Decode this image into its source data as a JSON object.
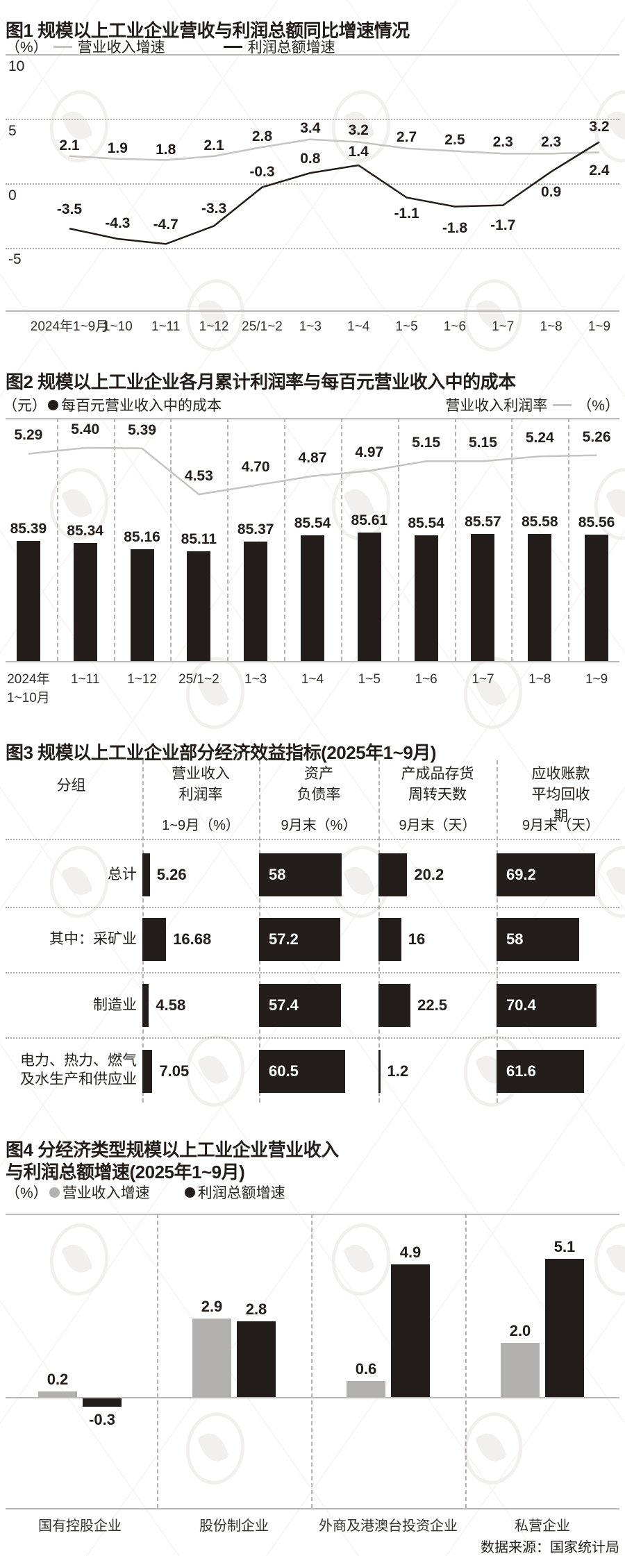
{
  "chart_data": [
    {
      "id": "figure1",
      "type": "line",
      "title": "图1 规模以上工业企业营收与利润总额同比增速情况",
      "unit": "（%）",
      "x": [
        "2024年1~9月",
        "1~10",
        "1~11",
        "1~12",
        "25/1~2",
        "1~3",
        "1~4",
        "1~5",
        "1~6",
        "1~7",
        "1~8",
        "1~9"
      ],
      "yticks": [
        "10",
        "5",
        "0",
        "-5"
      ],
      "ylim": [
        -9.9,
        10
      ],
      "grid": "horizontal-dotted",
      "legend_position": "top",
      "series": [
        {
          "name": "营业收入增速",
          "color": "#c6c4c2",
          "values": [
            2.1,
            1.9,
            1.8,
            2.1,
            2.8,
            3.4,
            3.2,
            2.7,
            2.5,
            2.3,
            2.3,
            2.4
          ],
          "labels": [
            "2.1",
            "1.9",
            "1.8",
            "2.1",
            "2.8",
            "3.4",
            "3.2",
            "2.7",
            "2.5",
            "2.3",
            "2.3",
            "2.4"
          ]
        },
        {
          "name": "利润总额增速",
          "color": "#221c1a",
          "values": [
            -3.5,
            -4.3,
            -4.7,
            -3.3,
            -0.3,
            0.8,
            1.4,
            -1.1,
            -1.8,
            -1.7,
            0.9,
            3.2
          ],
          "labels": [
            "-3.5",
            "-4.3",
            "-4.7",
            "-3.3",
            "-0.3",
            "0.8",
            "1.4",
            "-1.1",
            "-1.8",
            "-1.7",
            "0.9",
            "3.2"
          ]
        }
      ]
    },
    {
      "id": "figure2",
      "type": "bar+line",
      "title": "图2 规模以上工业企业各月累计利润率与每百元营业收入中的成本",
      "bar_unit": "（元）",
      "line_unit": "（%）",
      "x": [
        "2024年\n1~10月",
        "1~11",
        "1~12",
        "25/1~2",
        "1~3",
        "1~4",
        "1~5",
        "1~6",
        "1~7",
        "1~8",
        "1~9"
      ],
      "bar_series": {
        "name": "每百元营业收入中的成本",
        "color": "#231d1b",
        "values": [
          85.39,
          85.34,
          85.16,
          85.11,
          85.37,
          85.54,
          85.61,
          85.54,
          85.57,
          85.58,
          85.56
        ],
        "labels": [
          "85.39",
          "85.34",
          "85.16",
          "85.11",
          "85.37",
          "85.54",
          "85.61",
          "85.54",
          "85.57",
          "85.58",
          "85.56"
        ]
      },
      "line_series": {
        "name": "营业收入利润率",
        "color": "#c6c4c2",
        "values": [
          5.29,
          5.4,
          5.39,
          4.53,
          4.7,
          4.87,
          4.97,
          5.15,
          5.15,
          5.24,
          5.26
        ],
        "labels": [
          "5.29",
          "5.40",
          "5.39",
          "4.53",
          "4.70",
          "4.87",
          "4.97",
          "5.15",
          "5.15",
          "5.24",
          "5.26"
        ]
      }
    },
    {
      "id": "figure3",
      "type": "table",
      "title": "图3 规模以上工业企业部分经济效益指标(2025年1~9月)",
      "columns": [
        {
          "header": "分组",
          "unit": ""
        },
        {
          "header": "营业收入\n利润率",
          "unit": "1~9月（%）",
          "label_style": "outside"
        },
        {
          "header": "资产\n负债率",
          "unit": "9月末（%）",
          "label_style": "inside"
        },
        {
          "header": "产成品存货\n周转天数",
          "unit": "9月末（天）",
          "label_style": "outside"
        },
        {
          "header": "应收账款\n平均回收期",
          "unit": "9月末（天）",
          "label_style": "inside"
        }
      ],
      "rows": [
        {
          "group": "总计",
          "values": [
            5.26,
            58,
            20.2,
            69.2
          ],
          "labels": [
            "5.26",
            "58",
            "20.2",
            "69.2"
          ]
        },
        {
          "group": "其中：采矿业",
          "values": [
            16.68,
            57.2,
            16,
            58
          ],
          "labels": [
            "16.68",
            "57.2",
            "16",
            "58"
          ]
        },
        {
          "group": "制造业",
          "values": [
            4.58,
            57.4,
            22.5,
            70.4
          ],
          "labels": [
            "4.58",
            "57.4",
            "22.5",
            "70.4"
          ]
        },
        {
          "group": "电力、热力、燃气\n及水生产和供应业",
          "values": [
            7.05,
            60.5,
            1.2,
            61.6
          ],
          "labels": [
            "7.05",
            "60.5",
            "1.2",
            "61.6"
          ]
        }
      ]
    },
    {
      "id": "figure4",
      "type": "bar",
      "title": "图4 分经济类型规模以上工业企业营业收入\n与利润总额增速(2025年1~9月)",
      "unit": "（%）",
      "categories": [
        "国有控股企业",
        "股份制企业",
        "外商及港澳台投资企业",
        "私营企业"
      ],
      "series": [
        {
          "name": "营业收入增速",
          "color": "#b3b1af",
          "values": [
            0.2,
            2.9,
            0.6,
            2.0
          ],
          "labels": [
            "0.2",
            "2.9",
            "0.6",
            "2.0"
          ]
        },
        {
          "name": "利润总额增速",
          "color": "#221c1a",
          "values": [
            -0.3,
            2.8,
            4.9,
            5.1
          ],
          "labels": [
            "-0.3",
            "2.8",
            "4.9",
            "5.1"
          ]
        }
      ]
    }
  ],
  "footer": {
    "source": "数据来源：国家统计局"
  }
}
